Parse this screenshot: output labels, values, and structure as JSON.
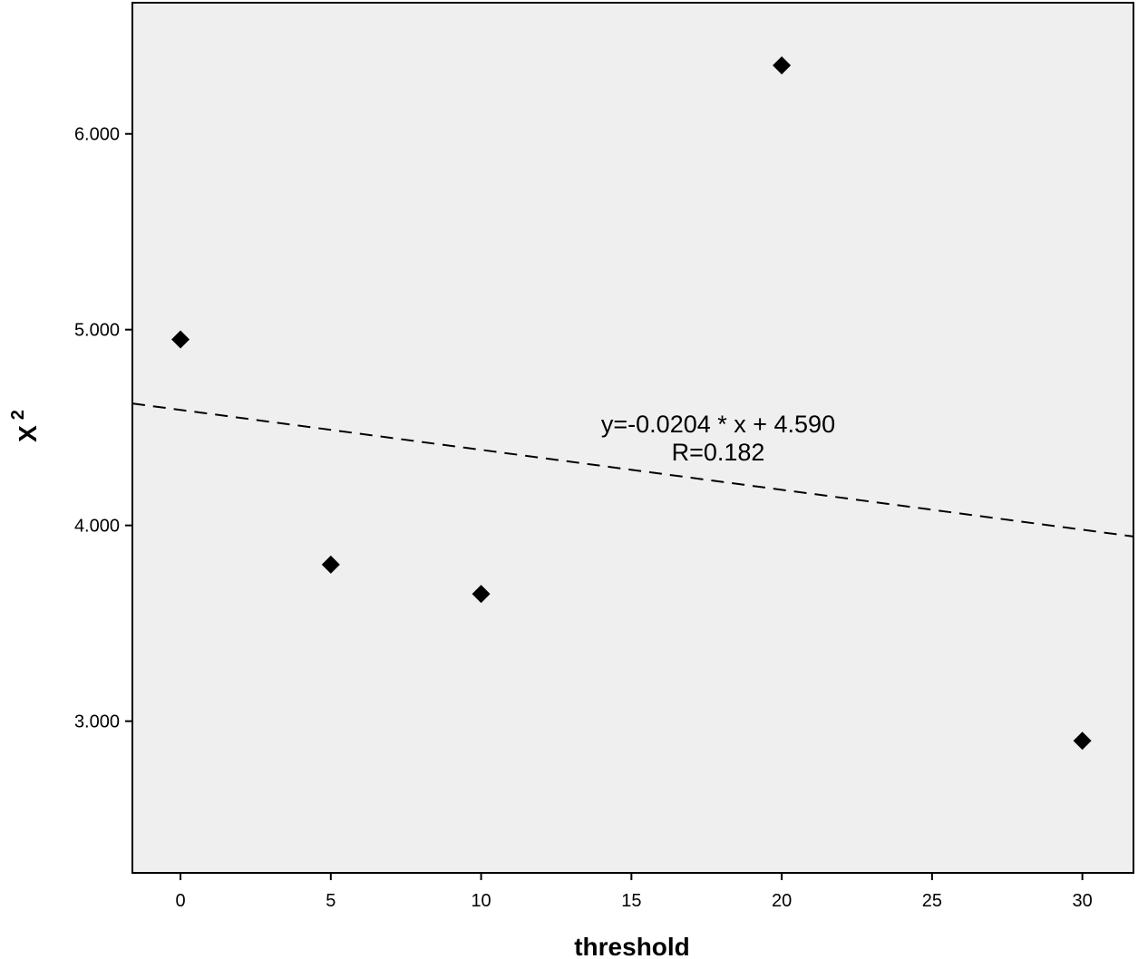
{
  "chart_data": {
    "type": "scatter",
    "title": "",
    "xlabel": "threshold",
    "ylabel_base": "X",
    "ylabel_exponent": "2",
    "xlim": [
      -1.6,
      31.7
    ],
    "ylim": [
      2.225,
      6.67
    ],
    "x_ticks": [
      0,
      5,
      10,
      15,
      20,
      25,
      30
    ],
    "x_tick_labels": [
      "0",
      "5",
      "10",
      "15",
      "20",
      "25",
      "30"
    ],
    "y_ticks": [
      3,
      4,
      5,
      6
    ],
    "y_tick_labels": [
      "3.000",
      "4.000",
      "5.000",
      "6.000"
    ],
    "grid": false,
    "marker": "diamond",
    "points": [
      {
        "x": 0,
        "y": 4.95
      },
      {
        "x": 5,
        "y": 3.8
      },
      {
        "x": 10,
        "y": 3.65
      },
      {
        "x": 20,
        "y": 6.35
      },
      {
        "x": 30,
        "y": 2.9
      }
    ],
    "fit_line": {
      "slope": -0.0204,
      "intercept": 4.59,
      "style": "dashed",
      "equation_label": "y=-0.0204 * x + 4.590",
      "r_label": "R=0.182"
    },
    "colors": {
      "plot_background": "#efefef",
      "marker": "#000000",
      "line": "#000000"
    }
  }
}
